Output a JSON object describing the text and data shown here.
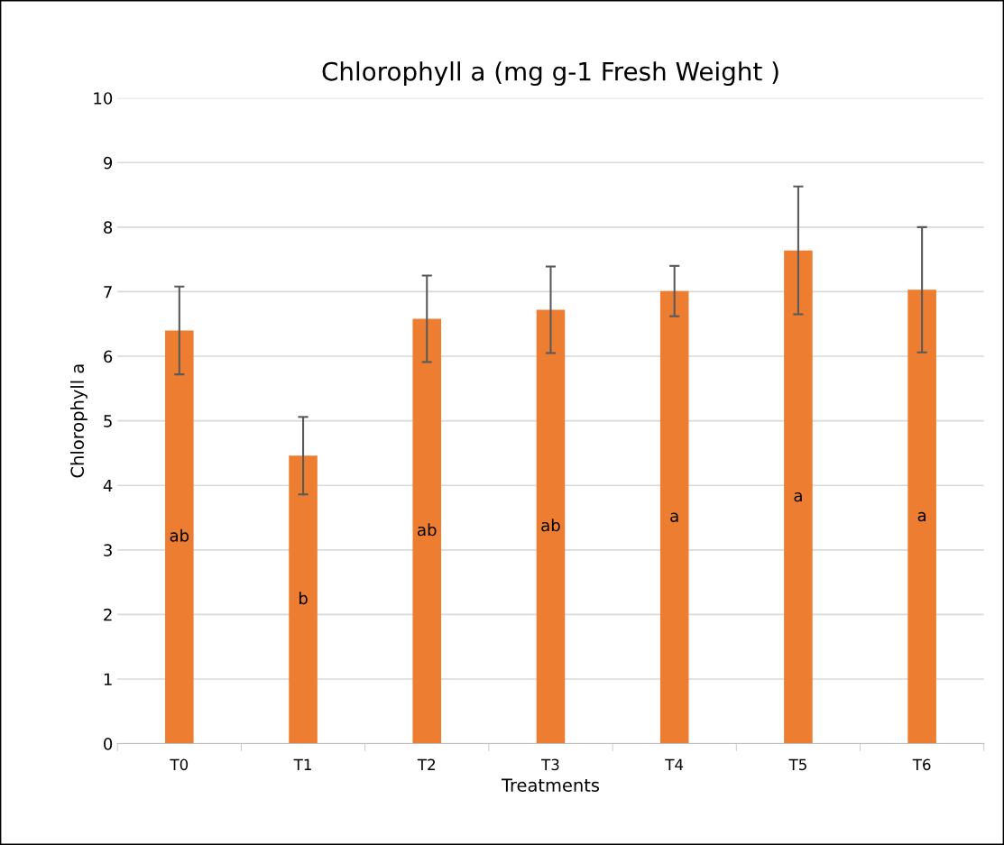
{
  "chart_data": {
    "type": "bar",
    "title": "Chlorophyll a (mg g-1 Fresh Weight )",
    "xlabel": "Treatments",
    "ylabel": "Chlorophyll a",
    "categories": [
      "T0",
      "T1",
      "T2",
      "T3",
      "T4",
      "T5",
      "T6"
    ],
    "values": [
      6.4,
      4.46,
      6.58,
      6.72,
      7.01,
      7.64,
      7.03
    ],
    "errors": [
      0.68,
      0.6,
      0.67,
      0.67,
      0.39,
      0.99,
      0.97
    ],
    "color": "#ed7d31",
    "ylim": [
      0,
      10
    ],
    "yticks": [
      0,
      1,
      2,
      3,
      4,
      5,
      6,
      7,
      8,
      9,
      10
    ],
    "grid": "y",
    "value_labels": [
      "ab",
      "b",
      "ab",
      "ab",
      "a",
      "a",
      "a"
    ]
  }
}
